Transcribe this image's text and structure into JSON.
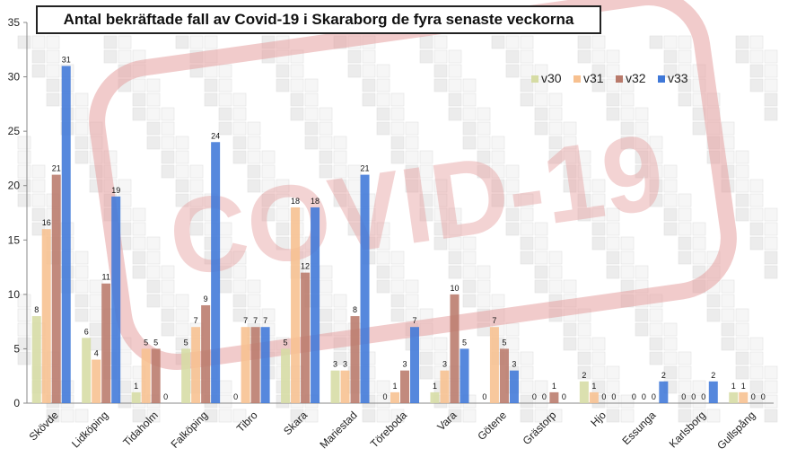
{
  "chart_data": {
    "type": "bar",
    "title": "Antal bekräftade fall av Covid-19 i Skaraborg de fyra senaste veckorna",
    "xlabel": "",
    "ylabel": "",
    "ylim": [
      0,
      35
    ],
    "yticks": [
      0,
      5,
      10,
      15,
      20,
      25,
      30,
      35
    ],
    "grid": false,
    "legend_position": "top-right",
    "watermark_text": "COVID-19",
    "categories": [
      "Skövde",
      "Lidköping",
      "Tidaholm",
      "Falköping",
      "Tibro",
      "Skara",
      "Mariestad",
      "Töreboda",
      "Vara",
      "Götene",
      "Grästorp",
      "Hjo",
      "Essunga",
      "Karlsborg",
      "Gullspång"
    ],
    "series": [
      {
        "name": "v30",
        "color": "#d6dca4",
        "values": [
          8,
          6,
          1,
          5,
          0,
          5,
          3,
          0,
          1,
          0,
          0,
          2,
          0,
          0,
          1
        ]
      },
      {
        "name": "v31",
        "color": "#f7c08f",
        "values": [
          16,
          4,
          5,
          7,
          7,
          18,
          3,
          1,
          3,
          7,
          0,
          1,
          0,
          0,
          1
        ]
      },
      {
        "name": "v32",
        "color": "#b97a6b",
        "values": [
          21,
          11,
          5,
          9,
          7,
          12,
          8,
          3,
          10,
          5,
          1,
          0,
          0,
          0,
          0
        ]
      },
      {
        "name": "v33",
        "color": "#3f78d8",
        "values": [
          31,
          19,
          0,
          24,
          7,
          18,
          21,
          7,
          5,
          3,
          0,
          0,
          2,
          2,
          0
        ]
      }
    ]
  }
}
